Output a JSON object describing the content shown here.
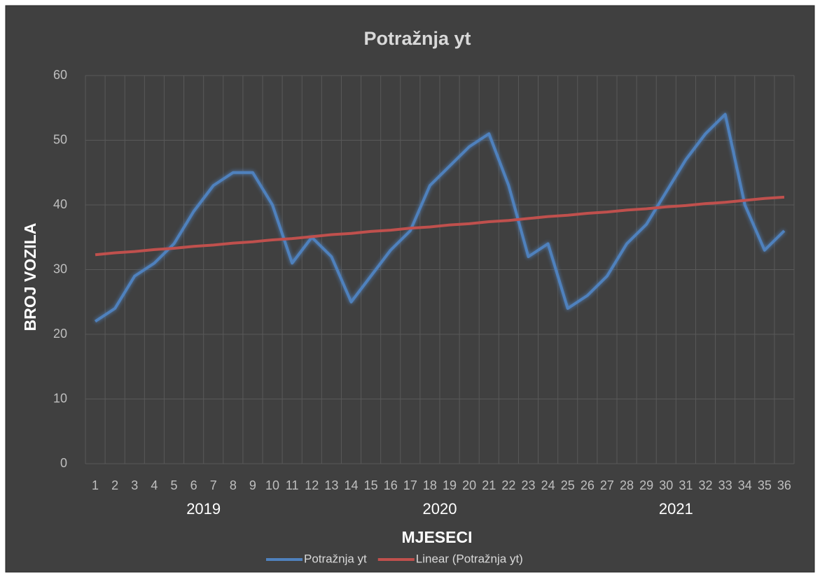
{
  "chart_data": {
    "type": "line",
    "title": "Potražnja  yt",
    "y_label": "BROJ VOZILA",
    "x_label": "MJESECI",
    "categories": [
      "1",
      "2",
      "3",
      "4",
      "5",
      "6",
      "7",
      "8",
      "9",
      "10",
      "11",
      "12",
      "13",
      "14",
      "15",
      "16",
      "17",
      "18",
      "19",
      "20",
      "21",
      "22",
      "23",
      "24",
      "25",
      "26",
      "27",
      "28",
      "29",
      "30",
      "31",
      "32",
      "33",
      "34",
      "35",
      "36"
    ],
    "category_groups": [
      {
        "label": "2019",
        "count": 12
      },
      {
        "label": "2020",
        "count": 12
      },
      {
        "label": "2021",
        "count": 12
      }
    ],
    "series": [
      {
        "name": "Potražnja  yt",
        "color": "#4f81bd",
        "values": [
          22,
          24,
          29,
          31,
          34,
          39,
          43,
          45,
          45,
          40,
          31,
          35,
          32,
          25,
          29,
          33,
          36,
          43,
          46,
          49,
          51,
          43,
          32,
          34,
          24,
          26,
          29,
          34,
          37,
          42,
          47,
          51,
          54,
          40,
          33,
          36
        ]
      },
      {
        "name": "Linear (Potražnja  yt)",
        "color": "#c0504d",
        "values": [
          32.3,
          32.6,
          32.8,
          33.1,
          33.3,
          33.6,
          33.8,
          34.1,
          34.3,
          34.6,
          34.8,
          35.1,
          35.4,
          35.6,
          35.9,
          36.1,
          36.4,
          36.6,
          36.9,
          37.1,
          37.4,
          37.6,
          37.9,
          38.2,
          38.4,
          38.7,
          38.9,
          39.2,
          39.4,
          39.7,
          39.9,
          40.2,
          40.4,
          40.7,
          41.0,
          41.2
        ]
      }
    ],
    "ylim": [
      0,
      60
    ],
    "yticks": [
      0,
      10,
      20,
      30,
      40,
      50,
      60
    ],
    "grid": true,
    "legend": "bottom"
  }
}
